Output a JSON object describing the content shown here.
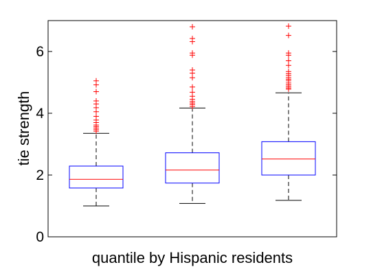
{
  "chart_data": {
    "type": "box",
    "xlabel": "quantile by Hispanic residents",
    "ylabel": "tie strength",
    "ylim": [
      0,
      7
    ],
    "yticks": [
      0,
      2,
      4,
      6
    ],
    "xtick_labels": [],
    "grid": false,
    "colors": {
      "box": "#0000ff",
      "median": "#ff0000",
      "whisker": "#000000",
      "outlier": "#ff0000"
    },
    "series": [
      {
        "q1": 1.58,
        "median": 1.86,
        "q3": 2.29,
        "whisker_low": 1.0,
        "whisker_high": 3.35,
        "outliers": [
          3.42,
          3.47,
          3.52,
          3.57,
          3.62,
          3.7,
          3.78,
          3.9,
          4.05,
          4.18,
          4.3,
          4.4,
          4.7,
          4.92,
          5.05
        ]
      },
      {
        "q1": 1.74,
        "median": 2.16,
        "q3": 2.72,
        "whisker_low": 1.08,
        "whisker_high": 4.17,
        "outliers": [
          4.22,
          4.28,
          4.33,
          4.38,
          4.45,
          4.55,
          4.68,
          4.85,
          5.15,
          5.3,
          5.4,
          5.88,
          5.95,
          6.32,
          6.42,
          6.8
        ]
      },
      {
        "q1": 2.0,
        "median": 2.52,
        "q3": 3.08,
        "whisker_low": 1.18,
        "whisker_high": 4.66,
        "outliers": [
          4.78,
          4.82,
          4.87,
          4.92,
          4.98,
          5.05,
          5.1,
          5.15,
          5.22,
          5.28,
          5.35,
          5.55,
          5.7,
          5.88,
          5.95,
          6.52,
          6.82
        ]
      }
    ]
  }
}
